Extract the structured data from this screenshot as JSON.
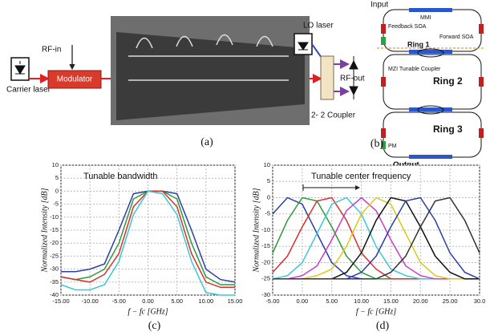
{
  "panel_a": {
    "rf_in": "RF-in",
    "modulator": "Modulator",
    "carrier_laser": "Carrier laser",
    "lo_laser": "LO laser",
    "rf_out": "RF-out",
    "coupler": "2- 2 Coupler",
    "caption": "(a)"
  },
  "panel_b": {
    "input": "Input",
    "mmi": "MMI",
    "feedback_soa": "Feedback SOA",
    "forward_soa": "Forward SOA",
    "ring1": "Ring 1",
    "mzi": "MZI Tunable Coupler",
    "ring2": "Ring 2",
    "ring3": "Ring 3",
    "pm": "PM",
    "output": "Output",
    "caption": "(b)"
  },
  "chart_data": [
    {
      "type": "line",
      "annotation": "Tunable bandwidth",
      "xlabel": "f − fc [GHz]",
      "ylabel": "Normalized Intensity [dB]",
      "caption": "(c)",
      "x": [
        -15,
        -12.5,
        -10,
        -7.5,
        -5,
        -2.5,
        0,
        2.5,
        5,
        7.5,
        10,
        12.5,
        15
      ],
      "xlim": [
        -15,
        15
      ],
      "xticks": [
        {
          "value": -15,
          "label": "-15.00"
        },
        {
          "value": -10,
          "label": "-10.00"
        },
        {
          "value": -5,
          "label": "-5.00"
        },
        {
          "value": 0,
          "label": "0.00"
        },
        {
          "value": 5,
          "label": "5.00"
        },
        {
          "value": 10,
          "label": "10.00"
        },
        {
          "value": 15,
          "label": "15.00"
        }
      ],
      "ylim": [
        -40,
        10
      ],
      "yticks": [
        -40,
        -35,
        -30,
        -25,
        -20,
        -15,
        -10,
        -5,
        0,
        5,
        10
      ],
      "grid": true,
      "series": [
        {
          "color": "#2b3fa8",
          "values": [
            -31,
            -31,
            -30,
            -28,
            -15,
            -1,
            0,
            0,
            -1,
            -15,
            -30,
            -34,
            -35
          ]
        },
        {
          "color": "#2e9a3e",
          "values": [
            -33,
            -34,
            -33,
            -30,
            -20,
            -3,
            0,
            0,
            -3,
            -20,
            -33,
            -36,
            -36
          ]
        },
        {
          "color": "#d6322e",
          "values": [
            -33,
            -34,
            -35,
            -32,
            -24,
            -6,
            0,
            0,
            -6,
            -24,
            -35,
            -37,
            -37
          ]
        },
        {
          "color": "#3cc8d0",
          "values": [
            -36,
            -38,
            -38,
            -36,
            -27,
            -9,
            0,
            -1,
            -9,
            -27,
            -39,
            -40,
            -40
          ]
        }
      ]
    },
    {
      "type": "line",
      "annotation": "Tunable center frequency",
      "xlabel": "f − fc [GHz]",
      "ylabel": "Normalized Intensity [dB]",
      "caption": "(d)",
      "x": [
        -5,
        -2.5,
        0,
        2.5,
        5,
        7.5,
        10,
        12.5,
        15,
        17.5,
        20,
        22.5,
        25,
        27.5,
        30
      ],
      "xlim": [
        -5,
        30
      ],
      "xticks": [
        {
          "value": -5,
          "label": "-5.00"
        },
        {
          "value": 0,
          "label": "0.00"
        },
        {
          "value": 5,
          "label": "5.00"
        },
        {
          "value": 10,
          "label": "10.00"
        },
        {
          "value": 15,
          "label": "15.00"
        },
        {
          "value": 20,
          "label": "20.00"
        },
        {
          "value": 25,
          "label": "25.00"
        },
        {
          "value": 30,
          "label": "30.0"
        }
      ],
      "ylim": [
        -30,
        10
      ],
      "yticks": [
        -30,
        -25,
        -20,
        -15,
        -10,
        -5,
        0,
        5,
        10
      ],
      "grid": true,
      "series": [
        {
          "color": "#2b3fa8",
          "values": [
            -5,
            0,
            -2,
            -11,
            -20,
            -24,
            -25,
            -25,
            -25,
            -25,
            -25,
            -25,
            -25,
            -25,
            -25
          ]
        },
        {
          "color": "#2e9a3e",
          "values": [
            -17,
            -7,
            0,
            -1,
            -9,
            -18,
            -23,
            -25,
            -25,
            -25,
            -25,
            -25,
            -25,
            -25,
            -25
          ]
        },
        {
          "color": "#d6322e",
          "values": [
            -23,
            -18,
            -9,
            -1,
            0,
            -7,
            -17,
            -22,
            -25,
            -25,
            -25,
            -25,
            -25,
            -25,
            -25
          ]
        },
        {
          "color": "#3cc8d0",
          "values": [
            -25,
            -24,
            -20,
            -11,
            -2,
            0,
            -5,
            -15,
            -22,
            -24,
            -25,
            -25,
            -25,
            -25,
            -25
          ]
        },
        {
          "color": "#c83cc8",
          "values": [
            -25,
            -25,
            -24,
            -21,
            -13,
            -4,
            0,
            -4,
            -13,
            -21,
            -24,
            -25,
            -25,
            -25,
            -25
          ]
        },
        {
          "color": "#d8c81e",
          "values": [
            -25,
            -25,
            -25,
            -24,
            -22,
            -15,
            -5,
            0,
            -2,
            -11,
            -20,
            -24,
            -25,
            -25,
            -25
          ]
        },
        {
          "color": "#111111",
          "values": [
            -25,
            -25,
            -25,
            -25,
            -25,
            -23,
            -17,
            -7,
            0,
            -1,
            -9,
            -18,
            -23,
            -25,
            -25
          ]
        },
        {
          "color": "#2b3fa8",
          "values": [
            -25,
            -25,
            -25,
            -25,
            -25,
            -25,
            -23,
            -18,
            -9,
            -1,
            0,
            -7,
            -17,
            -23,
            -25
          ]
        },
        {
          "color": "#333333",
          "values": [
            -25,
            -25,
            -25,
            -25,
            -25,
            -25,
            -25,
            -25,
            -23,
            -18,
            -9,
            -1,
            0,
            -7,
            -17
          ]
        }
      ]
    }
  ]
}
